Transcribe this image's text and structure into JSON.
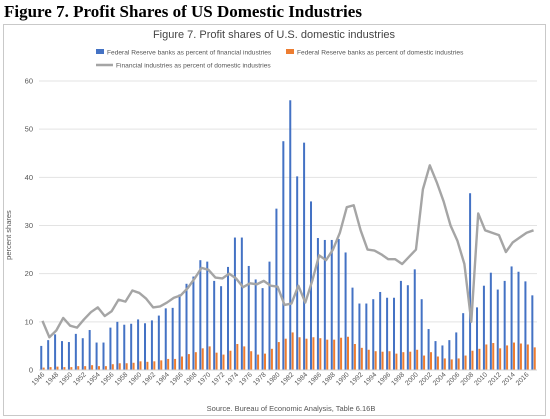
{
  "page": {
    "figure_heading": "Figure 7. Profit Shares of US Domestic Industries"
  },
  "chart_data": {
    "type": "bar",
    "title": "Figure 7. Profit shares of U.S. domestic industries",
    "ylabel": "percent shares",
    "xlabel": "",
    "source": "Source. Bureau of Economic Analysis, Table 6.16B",
    "ylim": [
      0,
      60
    ],
    "yticks": [
      0,
      10,
      20,
      30,
      40,
      50,
      60
    ],
    "grid": true,
    "legend_position": "top-left",
    "x_start": 1946,
    "xtick_labels": [
      "1946",
      "1948",
      "1950",
      "1952",
      "1954",
      "1956",
      "1958",
      "1960",
      "1962",
      "1964",
      "1966",
      "1968",
      "1970",
      "1972",
      "1974",
      "1976",
      "1978",
      "1980",
      "1982",
      "1984",
      "1986",
      "1988",
      "1990",
      "1992",
      "1994",
      "1996",
      "1998",
      "2000",
      "2002",
      "2004",
      "2006",
      "2008",
      "2010",
      "2012",
      "2014",
      "2016"
    ],
    "series": [
      {
        "name": "Federal Reserve banks as percent of financial industries",
        "kind": "bar",
        "color": "#4472c4",
        "values": [
          5.0,
          6.2,
          7.4,
          6.0,
          5.8,
          7.5,
          6.6,
          8.3,
          5.7,
          5.7,
          8.8,
          10.0,
          9.4,
          9.6,
          10.5,
          9.7,
          10.3,
          11.3,
          12.8,
          12.9,
          15.7,
          17.9,
          19.4,
          22.8,
          22.5,
          18.5,
          17.4,
          21.4,
          27.5,
          27.5,
          21.6,
          18.8,
          17.0,
          22.5,
          33.5,
          47.5,
          56.0,
          40.2,
          47.2,
          35.0,
          27.4,
          27.0,
          27.0,
          27.2,
          24.4,
          17.1,
          13.8,
          13.8,
          14.7,
          16.2,
          15.0,
          15.0,
          18.5,
          17.6,
          20.9,
          14.7,
          8.5,
          6.0,
          5.1,
          6.2,
          7.8,
          11.8,
          36.7,
          13.0,
          17.5,
          20.2,
          16.7,
          18.5,
          21.5,
          20.4,
          18.4,
          15.5
        ]
      },
      {
        "name": "Federal Reserve banks as percent of domestic industries",
        "kind": "bar",
        "color": "#ed7d31",
        "values": [
          0.5,
          0.6,
          0.7,
          0.6,
          0.6,
          0.8,
          0.8,
          1.0,
          0.8,
          0.8,
          1.2,
          1.4,
          1.4,
          1.5,
          1.8,
          1.7,
          1.8,
          2.0,
          2.3,
          2.3,
          2.8,
          3.3,
          3.7,
          4.5,
          4.9,
          3.6,
          3.2,
          4.0,
          5.4,
          4.9,
          3.9,
          3.2,
          3.4,
          4.4,
          5.8,
          6.5,
          7.8,
          6.8,
          6.5,
          6.8,
          6.6,
          6.3,
          6.3,
          6.7,
          6.9,
          5.4,
          4.6,
          4.2,
          3.9,
          3.8,
          3.9,
          3.4,
          3.7,
          3.8,
          4.2,
          3.0,
          3.7,
          2.8,
          2.4,
          2.2,
          2.4,
          3.0,
          4.0,
          4.4,
          5.3,
          5.6,
          4.5,
          5.1,
          5.7,
          5.5,
          5.3,
          4.7
        ]
      },
      {
        "name": "Financial industries as percent of domestic industries",
        "kind": "line",
        "color": "#a5a5a5",
        "values": [
          10.2,
          6.8,
          8.2,
          10.8,
          9.2,
          8.8,
          10.5,
          12.0,
          13.0,
          11.2,
          12.2,
          14.6,
          14.2,
          16.5,
          16.0,
          14.8,
          13.0,
          13.2,
          14.0,
          15.0,
          15.5,
          17.0,
          19.0,
          21.2,
          20.8,
          19.2,
          19.0,
          20.0,
          19.0,
          17.2,
          18.0,
          17.8,
          18.5,
          17.5,
          17.3,
          13.5,
          13.8,
          17.5,
          14.0,
          18.5,
          23.8,
          22.8,
          25.0,
          28.5,
          33.8,
          34.2,
          29.0,
          25.0,
          24.8,
          24.0,
          23.0,
          23.0,
          22.0,
          23.5,
          25.0,
          37.5,
          42.5,
          39.0,
          35.0,
          30.0,
          26.8,
          22.0,
          10.0,
          32.5,
          29.0,
          28.5,
          28.0,
          24.5,
          26.5,
          27.5,
          28.5,
          29.0
        ]
      }
    ]
  }
}
